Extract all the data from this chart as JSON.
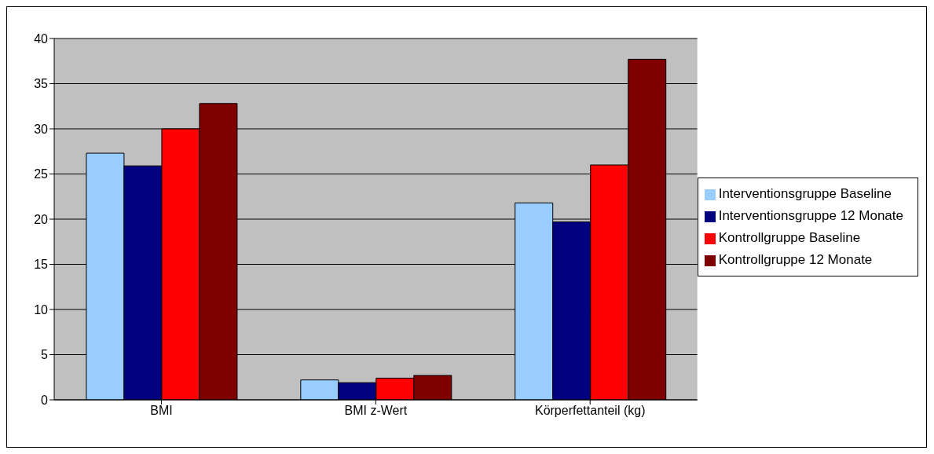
{
  "chart_data": {
    "type": "bar",
    "categories": [
      "BMI",
      "BMI z-Wert",
      "Körperfettanteil (kg)"
    ],
    "series": [
      {
        "name": "Interventionsgruppe Baseline",
        "color": "#99ccff",
        "values": [
          27.3,
          2.2,
          21.8
        ]
      },
      {
        "name": "Interventionsgruppe 12 Monate",
        "color": "#000080",
        "values": [
          25.9,
          1.9,
          19.7
        ]
      },
      {
        "name": "Kontrollgruppe Baseline",
        "color": "#ff0000",
        "values": [
          30.0,
          2.4,
          26.0
        ]
      },
      {
        "name": "Kontrollgruppe 12 Monate",
        "color": "#800000",
        "values": [
          32.8,
          2.7,
          37.7
        ]
      }
    ],
    "ylim": [
      0,
      40
    ],
    "yticks": [
      0,
      5,
      10,
      15,
      20,
      25,
      30,
      35,
      40
    ],
    "grid": "y",
    "legend": "right"
  }
}
